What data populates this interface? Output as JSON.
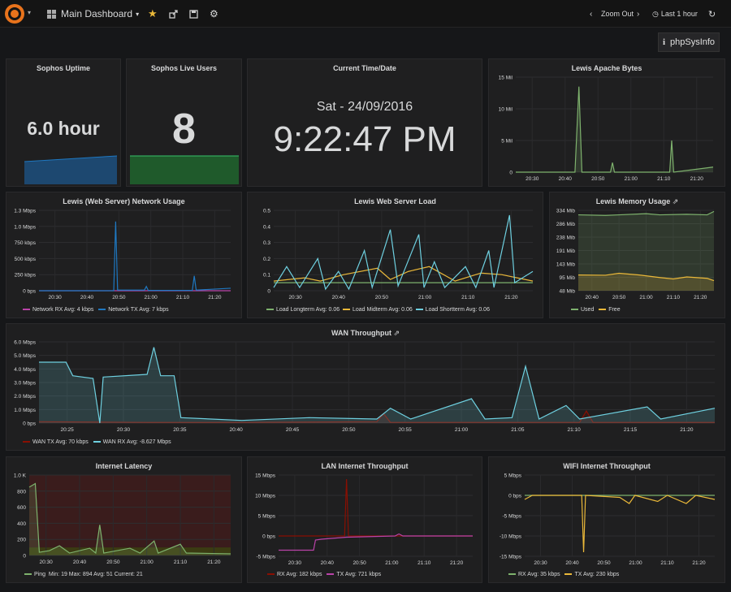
{
  "toolbar": {
    "dashboard_title": "Main Dashboard",
    "zoom_out": "Zoom Out",
    "time_range": "Last 1 hour",
    "php_link": "phpSysInfo"
  },
  "colors": {
    "green": "#7eb26d",
    "blue": "#1f78c1",
    "yellow": "#eab839",
    "cyan": "#6ed0e0",
    "red": "#890f02",
    "pink": "#ba43a9",
    "darkred": "#bf1b00"
  },
  "panels": {
    "uptime": {
      "title": "Sophos Uptime",
      "value": "6.0 hour"
    },
    "users": {
      "title": "Sophos Live Users",
      "value": "8"
    },
    "clock": {
      "title": "Current Time/Date",
      "date": "Sat - 24/09/2016",
      "time": "9:22:47 PM"
    },
    "apache": {
      "title": "Lewis Apache Bytes"
    },
    "network": {
      "title": "Lewis (Web Server) Network Usage",
      "legend": [
        {
          "name": "Network RX",
          "stats": "Avg: 4 kbps"
        },
        {
          "name": "Network TX",
          "stats": "Avg: 7 kbps"
        }
      ]
    },
    "load": {
      "title": "Lewis Web Server Load",
      "legend": [
        {
          "name": "Load Longterm",
          "stats": "Avg: 0.06"
        },
        {
          "name": "Load Midterm",
          "stats": "Avg: 0.06"
        },
        {
          "name": "Load Shortterm",
          "stats": "Avg: 0.06"
        }
      ]
    },
    "memory": {
      "title": "Lewis Memory Usage",
      "legend": [
        {
          "name": "Used"
        },
        {
          "name": "Free"
        }
      ]
    },
    "wan": {
      "title": "WAN Throughput",
      "legend": [
        {
          "name": "WAN TX",
          "stats": "Avg: 70 kbps"
        },
        {
          "name": "WAN RX",
          "stats": "Avg: -8.627 Mbps"
        }
      ]
    },
    "latency": {
      "title": "Internet Latency",
      "legend": [
        {
          "name": "Ping",
          "stats": "Min: 19  Max: 894  Avg: 51  Current: 21"
        }
      ]
    },
    "lan": {
      "title": "LAN Internet Throughput",
      "legend": [
        {
          "name": "RX",
          "stats": "Avg: 182 kbps"
        },
        {
          "name": "TX",
          "stats": "Avg: 721 kbps"
        }
      ]
    },
    "wifi": {
      "title": "WIFI Internet Throughput",
      "legend": [
        {
          "name": "RX",
          "stats": "Avg: 35 kbps"
        },
        {
          "name": "TX",
          "stats": "Avg: 230 kbps"
        }
      ]
    }
  },
  "chart_data": [
    {
      "type": "area",
      "title": "Lewis Apache Bytes",
      "y_ticks": [
        "15 Mil",
        "10 Mil",
        "5 Mil",
        "0"
      ],
      "ylim": [
        0,
        15000000
      ],
      "x_ticks": [
        "20:30",
        "20:40",
        "20:50",
        "21:00",
        "21:10",
        "21:20"
      ],
      "series": [
        {
          "color": "#7eb26d",
          "points": [
            [
              0,
              0
            ],
            [
              0.3,
              0
            ],
            [
              0.32,
              13500000
            ],
            [
              0.335,
              0
            ],
            [
              0.48,
              0
            ],
            [
              0.49,
              1500000
            ],
            [
              0.5,
              0
            ],
            [
              0.78,
              0
            ],
            [
              0.79,
              5000000
            ],
            [
              0.8,
              0
            ],
            [
              1,
              800000
            ]
          ]
        }
      ]
    },
    {
      "type": "line",
      "title": "Lewis (Web Server) Network Usage",
      "y_ticks": [
        "1.3 Mbps",
        "1.0 Mbps",
        "750 kbps",
        "500 kbps",
        "250 kbps",
        "0 bps"
      ],
      "ylim": [
        0,
        1300000
      ],
      "x_ticks": [
        "20:30",
        "20:40",
        "20:50",
        "21:00",
        "21:10",
        "21:20"
      ],
      "series": [
        {
          "name": "Network RX",
          "color": "#ba43a9",
          "points": [
            [
              0,
              0
            ],
            [
              1,
              0
            ]
          ]
        },
        {
          "name": "Network TX",
          "color": "#1f78c1",
          "points": [
            [
              0,
              0
            ],
            [
              0.39,
              0
            ],
            [
              0.4,
              1120000
            ],
            [
              0.41,
              10000
            ],
            [
              0.55,
              10000
            ],
            [
              0.56,
              70000
            ],
            [
              0.57,
              5000
            ],
            [
              0.8,
              5000
            ],
            [
              0.81,
              240000
            ],
            [
              0.82,
              10000
            ],
            [
              1,
              40000
            ]
          ]
        }
      ]
    },
    {
      "type": "line",
      "title": "Lewis Web Server Load",
      "y_ticks": [
        "0.5",
        "0.4",
        "0.3",
        "0.2",
        "0.1",
        "0"
      ],
      "ylim": [
        0,
        0.5
      ],
      "x_ticks": [
        "20:30",
        "20:40",
        "20:50",
        "21:00",
        "21:10",
        "21:20"
      ],
      "series": [
        {
          "name": "Load Longterm",
          "color": "#7eb26d",
          "points": [
            [
              0,
              0.05
            ],
            [
              1,
              0.05
            ]
          ]
        },
        {
          "name": "Load Midterm",
          "color": "#eab839",
          "points": [
            [
              0,
              0.06
            ],
            [
              0.12,
              0.08
            ],
            [
              0.18,
              0.06
            ],
            [
              0.27,
              0.1
            ],
            [
              0.4,
              0.14
            ],
            [
              0.45,
              0.07
            ],
            [
              0.52,
              0.12
            ],
            [
              0.6,
              0.15
            ],
            [
              0.7,
              0.06
            ],
            [
              0.8,
              0.11
            ],
            [
              0.88,
              0.1
            ],
            [
              1,
              0.06
            ]
          ]
        },
        {
          "name": "Load Shortterm",
          "color": "#6ed0e0",
          "points": [
            [
              0,
              0.02
            ],
            [
              0.05,
              0.15
            ],
            [
              0.1,
              0.02
            ],
            [
              0.17,
              0.2
            ],
            [
              0.2,
              0.01
            ],
            [
              0.25,
              0.12
            ],
            [
              0.29,
              0.01
            ],
            [
              0.35,
              0.25
            ],
            [
              0.38,
              0.02
            ],
            [
              0.45,
              0.38
            ],
            [
              0.48,
              0.03
            ],
            [
              0.56,
              0.35
            ],
            [
              0.58,
              0.02
            ],
            [
              0.62,
              0.18
            ],
            [
              0.66,
              0.02
            ],
            [
              0.74,
              0.15
            ],
            [
              0.78,
              0.02
            ],
            [
              0.83,
              0.25
            ],
            [
              0.85,
              0.02
            ],
            [
              0.91,
              0.47
            ],
            [
              0.93,
              0.05
            ],
            [
              1,
              0.12
            ]
          ]
        }
      ]
    },
    {
      "type": "area",
      "title": "Lewis Memory Usage",
      "y_ticks": [
        "334 Mib",
        "286 Mib",
        "238 Mib",
        "191 Mib",
        "143 Mib",
        "95 Mib",
        "48 Mib"
      ],
      "ylim": [
        48,
        334
      ],
      "x_ticks": [
        "20:40",
        "20:50",
        "21:00",
        "21:10",
        "21:20"
      ],
      "series": [
        {
          "name": "Used",
          "color": "#7eb26d",
          "points": [
            [
              0,
              318
            ],
            [
              0.2,
              316
            ],
            [
              0.3,
              318
            ],
            [
              0.5,
              322
            ],
            [
              0.6,
              318
            ],
            [
              0.8,
              320
            ],
            [
              0.95,
              318
            ],
            [
              1,
              330
            ]
          ]
        },
        {
          "name": "Free",
          "color": "#eab839",
          "points": [
            [
              0,
              104
            ],
            [
              0.2,
              103
            ],
            [
              0.3,
              110
            ],
            [
              0.45,
              104
            ],
            [
              0.6,
              95
            ],
            [
              0.7,
              90
            ],
            [
              0.8,
              97
            ],
            [
              0.95,
              92
            ],
            [
              1,
              84
            ]
          ]
        }
      ]
    },
    {
      "type": "area",
      "title": "WAN Throughput",
      "y_ticks": [
        "6.0 Mbps",
        "5.0 Mbps",
        "4.0 Mbps",
        "3.0 Mbps",
        "2.0 Mbps",
        "1.0 Mbps",
        "0 bps"
      ],
      "ylim": [
        0,
        6000000
      ],
      "x_ticks": [
        "20:25",
        "20:30",
        "20:35",
        "20:40",
        "20:45",
        "20:50",
        "20:55",
        "21:00",
        "21:05",
        "21:10",
        "21:15",
        "21:20"
      ],
      "series": [
        {
          "name": "WAN TX",
          "color": "#890f02",
          "points": [
            [
              0,
              0.1
            ],
            [
              0.16,
              0.05
            ],
            [
              0.3,
              0.05
            ],
            [
              0.5,
              0.1
            ],
            [
              0.51,
              0.7
            ],
            [
              0.52,
              0.05
            ],
            [
              0.8,
              0.05
            ],
            [
              0.81,
              0.9
            ],
            [
              0.82,
              0.05
            ],
            [
              1,
              0.05
            ]
          ]
        },
        {
          "name": "WAN RX",
          "color": "#6ed0e0",
          "points": [
            [
              0,
              4.5
            ],
            [
              0.04,
              4.5
            ],
            [
              0.05,
              3.5
            ],
            [
              0.08,
              3.3
            ],
            [
              0.09,
              0
            ],
            [
              0.095,
              3.4
            ],
            [
              0.16,
              3.6
            ],
            [
              0.17,
              5.6
            ],
            [
              0.18,
              3.5
            ],
            [
              0.2,
              3.5
            ],
            [
              0.21,
              0.4
            ],
            [
              0.3,
              0.2
            ],
            [
              0.4,
              0.4
            ],
            [
              0.5,
              0.3
            ],
            [
              0.52,
              1.1
            ],
            [
              0.55,
              0.3
            ],
            [
              0.64,
              1.8
            ],
            [
              0.66,
              0.3
            ],
            [
              0.7,
              0.4
            ],
            [
              0.72,
              4.2
            ],
            [
              0.74,
              0.3
            ],
            [
              0.78,
              1.3
            ],
            [
              0.8,
              0.3
            ],
            [
              0.9,
              1.2
            ],
            [
              0.92,
              0.3
            ],
            [
              1,
              1.1
            ]
          ]
        }
      ]
    },
    {
      "type": "area",
      "title": "Internet Latency",
      "y_ticks": [
        "1.0 K",
        "800",
        "600",
        "400",
        "200",
        "0"
      ],
      "ylim": [
        0,
        1000
      ],
      "x_ticks": [
        "20:30",
        "20:40",
        "20:50",
        "21:00",
        "21:10",
        "21:20"
      ],
      "series": [
        {
          "name": "Ping",
          "color": "#7eb26d",
          "points": [
            [
              0,
              850
            ],
            [
              0.03,
              894
            ],
            [
              0.05,
              40
            ],
            [
              0.1,
              60
            ],
            [
              0.15,
              120
            ],
            [
              0.2,
              30
            ],
            [
              0.3,
              90
            ],
            [
              0.33,
              30
            ],
            [
              0.35,
              380
            ],
            [
              0.37,
              30
            ],
            [
              0.5,
              90
            ],
            [
              0.55,
              30
            ],
            [
              0.62,
              180
            ],
            [
              0.64,
              30
            ],
            [
              0.75,
              140
            ],
            [
              0.78,
              30
            ],
            [
              1,
              21
            ]
          ]
        }
      ]
    },
    {
      "type": "line",
      "title": "LAN Internet Throughput",
      "y_ticks": [
        "15 Mbps",
        "10 Mbps",
        "5 Mbps",
        "0 bps",
        "-5 Mbps"
      ],
      "ylim": [
        -5,
        15
      ],
      "x_ticks": [
        "20:30",
        "20:40",
        "20:50",
        "21:00",
        "21:10",
        "21:20"
      ],
      "series": [
        {
          "name": "RX",
          "color": "#890f02",
          "points": [
            [
              0,
              0
            ],
            [
              0.34,
              0
            ],
            [
              0.35,
              14
            ],
            [
              0.36,
              0
            ],
            [
              1,
              0
            ]
          ]
        },
        {
          "name": "TX",
          "color": "#ba43a9",
          "points": [
            [
              0,
              -3.5
            ],
            [
              0.18,
              -3.5
            ],
            [
              0.19,
              -1
            ],
            [
              0.22,
              -0.8
            ],
            [
              0.35,
              -0.3
            ],
            [
              0.6,
              0
            ],
            [
              0.62,
              0.5
            ],
            [
              0.64,
              0
            ],
            [
              1,
              0
            ]
          ]
        }
      ]
    },
    {
      "type": "line",
      "title": "WIFI Internet Throughput",
      "y_ticks": [
        "5 Mbps",
        "0 bps",
        "-5 Mbps",
        "-10 Mbps",
        "-15 Mbps"
      ],
      "ylim": [
        -15,
        5
      ],
      "x_ticks": [
        "20:30",
        "20:40",
        "20:50",
        "21:00",
        "21:10",
        "21:20"
      ],
      "series": [
        {
          "name": "RX",
          "color": "#7eb26d",
          "points": [
            [
              0,
              0
            ],
            [
              1,
              0
            ]
          ]
        },
        {
          "name": "TX",
          "color": "#eab839",
          "points": [
            [
              0,
              -1
            ],
            [
              0.04,
              0
            ],
            [
              0.3,
              0
            ],
            [
              0.31,
              -14
            ],
            [
              0.32,
              0
            ],
            [
              0.5,
              -0.5
            ],
            [
              0.55,
              -2
            ],
            [
              0.58,
              0
            ],
            [
              0.7,
              -1.5
            ],
            [
              0.75,
              0
            ],
            [
              0.85,
              -2
            ],
            [
              0.9,
              0
            ],
            [
              1,
              -1
            ]
          ]
        }
      ]
    }
  ]
}
